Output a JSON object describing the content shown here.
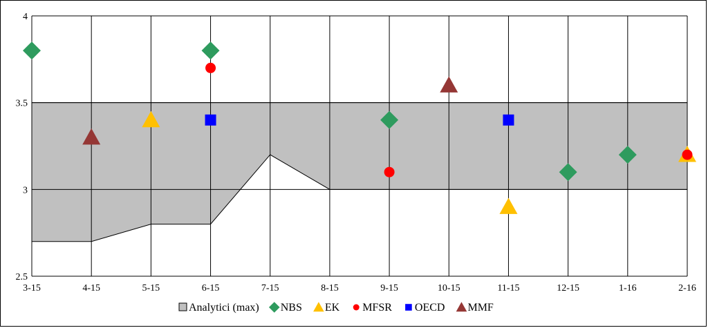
{
  "chart_data": {
    "type": "area",
    "title": "",
    "xlabel": "",
    "ylabel": "",
    "categories": [
      "3-15",
      "4-15",
      "5-15",
      "6-15",
      "7-15",
      "8-15",
      "9-15",
      "10-15",
      "11-15",
      "12-15",
      "1-16",
      "2-16"
    ],
    "ylim": [
      2.5,
      4
    ],
    "yticks": [
      2.5,
      3,
      3.5,
      4
    ],
    "grid": true,
    "legend_position": "bottom",
    "band": {
      "name": "Analytici (max)",
      "color": "#C0C0C0",
      "upper": [
        3.5,
        3.5,
        3.5,
        3.5,
        3.5,
        3.5,
        3.5,
        3.5,
        3.5,
        3.5,
        3.5,
        3.5
      ],
      "lower": [
        2.7,
        2.7,
        2.8,
        2.8,
        3.2,
        3.0,
        3.0,
        3.0,
        3.0,
        3.0,
        3.0,
        3.0
      ]
    },
    "series": [
      {
        "name": "NBS",
        "marker": "diamond",
        "color": "#2E9B5E",
        "points": [
          {
            "x": "3-15",
            "y": 3.8
          },
          {
            "x": "6-15",
            "y": 3.8
          },
          {
            "x": "9-15",
            "y": 3.4
          },
          {
            "x": "12-15",
            "y": 3.1
          },
          {
            "x": "1-16",
            "y": 3.2
          }
        ]
      },
      {
        "name": "EK",
        "marker": "triangle",
        "color": "#FFC000",
        "points": [
          {
            "x": "5-15",
            "y": 3.4
          },
          {
            "x": "11-15",
            "y": 2.9
          },
          {
            "x": "2-16",
            "y": 3.2
          }
        ]
      },
      {
        "name": "MFSR",
        "marker": "circle",
        "color": "#FF0000",
        "points": [
          {
            "x": "6-15",
            "y": 3.7
          },
          {
            "x": "9-15",
            "y": 3.1
          },
          {
            "x": "2-16",
            "y": 3.2
          }
        ]
      },
      {
        "name": "OECD",
        "marker": "square",
        "color": "#0000FF",
        "points": [
          {
            "x": "6-15",
            "y": 3.4
          },
          {
            "x": "11-15",
            "y": 3.4
          }
        ]
      },
      {
        "name": "MMF",
        "marker": "triangle",
        "color": "#953735",
        "points": [
          {
            "x": "4-15",
            "y": 3.3
          },
          {
            "x": "10-15",
            "y": 3.6
          }
        ]
      }
    ]
  }
}
